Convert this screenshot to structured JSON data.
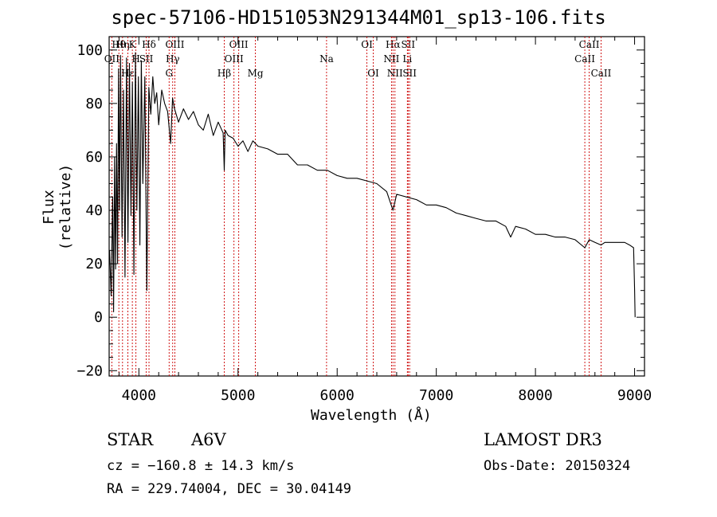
{
  "chart_data": {
    "type": "line",
    "title": "spec-57106-HD151053N291344M01_sp13-106.fits",
    "xlabel": "Wavelength (Å)",
    "ylabel": "Flux (relative)",
    "xlim": [
      3700,
      9100
    ],
    "ylim": [
      -22,
      105
    ],
    "xticks": [
      4000,
      5000,
      6000,
      7000,
      8000,
      9000
    ],
    "yticks": [
      -20,
      0,
      20,
      40,
      60,
      80,
      100
    ],
    "series": [
      {
        "name": "flux",
        "x": [
          3705,
          3720,
          3735,
          3745,
          3755,
          3765,
          3775,
          3785,
          3795,
          3805,
          3815,
          3830,
          3845,
          3860,
          3875,
          3890,
          3905,
          3920,
          3935,
          3950,
          3965,
          3980,
          3995,
          4010,
          4025,
          4040,
          4060,
          4080,
          4100,
          4120,
          4140,
          4160,
          4180,
          4200,
          4230,
          4260,
          4290,
          4320,
          4340,
          4360,
          4400,
          4450,
          4500,
          4550,
          4600,
          4650,
          4700,
          4750,
          4800,
          4850,
          4861,
          4870,
          4900,
          4950,
          5000,
          5050,
          5100,
          5150,
          5200,
          5300,
          5400,
          5500,
          5600,
          5700,
          5800,
          5900,
          6000,
          6100,
          6200,
          6300,
          6400,
          6500,
          6563,
          6600,
          6700,
          6800,
          6900,
          7000,
          7100,
          7200,
          7300,
          7400,
          7500,
          7600,
          7700,
          7750,
          7800,
          7900,
          8000,
          8100,
          8200,
          8300,
          8400,
          8498,
          8542,
          8600,
          8662,
          8700,
          8800,
          8900,
          8950,
          8990,
          9000,
          9005
        ],
        "values": [
          25,
          8,
          45,
          2,
          60,
          18,
          65,
          20,
          93,
          40,
          98,
          30,
          85,
          15,
          97,
          28,
          95,
          38,
          88,
          16,
          99,
          40,
          90,
          27,
          96,
          50,
          90,
          10,
          86,
          76,
          90,
          80,
          84,
          72,
          85,
          80,
          77,
          65,
          82,
          78,
          73,
          78,
          74,
          77,
          72,
          70,
          76,
          68,
          73,
          69,
          55,
          70,
          68,
          67,
          64,
          66,
          62,
          66,
          64,
          63,
          61,
          61,
          57,
          57,
          55,
          55,
          53,
          52,
          52,
          51,
          50,
          47,
          40,
          46,
          45,
          44,
          42,
          42,
          41,
          39,
          38,
          37,
          36,
          36,
          34,
          30,
          34,
          33,
          31,
          31,
          30,
          30,
          29,
          26,
          29,
          28,
          27,
          28,
          28,
          28,
          27,
          26,
          10,
          0
        ]
      }
    ],
    "lines": [
      {
        "name": "Hθ",
        "x": 3798,
        "row": 1
      },
      {
        "name": "OΙΙ",
        "x": 3727,
        "row": 2
      },
      {
        "name": "Hη",
        "x": 3835,
        "row": 1
      },
      {
        "name": "Hε",
        "x": 3889,
        "row": 3
      },
      {
        "name": "K",
        "x": 3934,
        "row": 1
      },
      {
        "name": "H",
        "x": 3970,
        "row": 2
      },
      {
        "name": "SΙΙ",
        "x": 4074,
        "row": 2
      },
      {
        "name": "Hδ",
        "x": 4102,
        "row": 1
      },
      {
        "name": "OΙΙΙ",
        "x": 4363,
        "row": 1
      },
      {
        "name": "Hγ",
        "x": 4341,
        "row": 2
      },
      {
        "name": "G",
        "x": 4305,
        "row": 3
      },
      {
        "name": "Hβ",
        "x": 4861,
        "row": 3
      },
      {
        "name": "OΙΙΙ",
        "x": 5007,
        "row": 1
      },
      {
        "name": "OΙΙΙ",
        "x": 4959,
        "row": 2
      },
      {
        "name": "Mg",
        "x": 5175,
        "row": 3
      },
      {
        "name": "Na",
        "x": 5893,
        "row": 2
      },
      {
        "name": "OΙ",
        "x": 6300,
        "row": 1
      },
      {
        "name": "OΙ",
        "x": 6364,
        "row": 3
      },
      {
        "name": "Hα",
        "x": 6563,
        "row": 1
      },
      {
        "name": "SΙΙ",
        "x": 6716,
        "row": 1
      },
      {
        "name": "NΙΙ",
        "x": 6548,
        "row": 2
      },
      {
        "name": "Li",
        "x": 6708,
        "row": 2
      },
      {
        "name": "NΙΙ",
        "x": 6583,
        "row": 3
      },
      {
        "name": "SΙΙ",
        "x": 6731,
        "row": 3
      },
      {
        "name": "CaΙΙ",
        "x": 8542,
        "row": 1
      },
      {
        "name": "CaΙΙ",
        "x": 8498,
        "row": 2
      },
      {
        "name": "CaΙΙ",
        "x": 8662,
        "row": 3
      }
    ]
  },
  "info": {
    "object_class": "STAR",
    "subclass": "A6V",
    "survey": "LAMOST DR3",
    "cz": "cz = −160.8 ± 14.3 km/s",
    "obs_date": "Obs-Date: 20150324",
    "coords": "RA = 229.74004, DEC =  30.04149"
  }
}
